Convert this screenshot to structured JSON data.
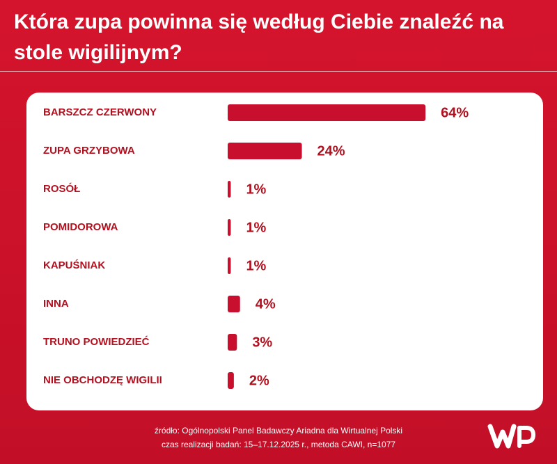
{
  "chart_data": {
    "type": "bar",
    "orientation": "horizontal",
    "title": "Która zupa powinna się według Ciebie znaleźć na stole wigilijnym?",
    "categories": [
      "BARSZCZ CZERWONY",
      "ZUPA GRZYBOWA",
      "ROSÓŁ",
      "POMIDOROWA",
      "KAPUŚNIAK",
      "INNA",
      "TRUNO POWIEDZIEĆ",
      "NIE OBCHODZĘ WIGILII"
    ],
    "values": [
      64,
      24,
      1,
      1,
      1,
      4,
      3,
      2
    ],
    "value_labels": [
      "64%",
      "24%",
      "1%",
      "1%",
      "1%",
      "4%",
      "3%",
      "2%"
    ],
    "color": "#c8102e",
    "source": [
      "źródło: Ogólnopolski Panel Badawczy Ariadna dla Wirtualnej Polski",
      "czas realizacji badań: 15–17.12.2025 r., metoda CAWI, n=1077"
    ]
  }
}
